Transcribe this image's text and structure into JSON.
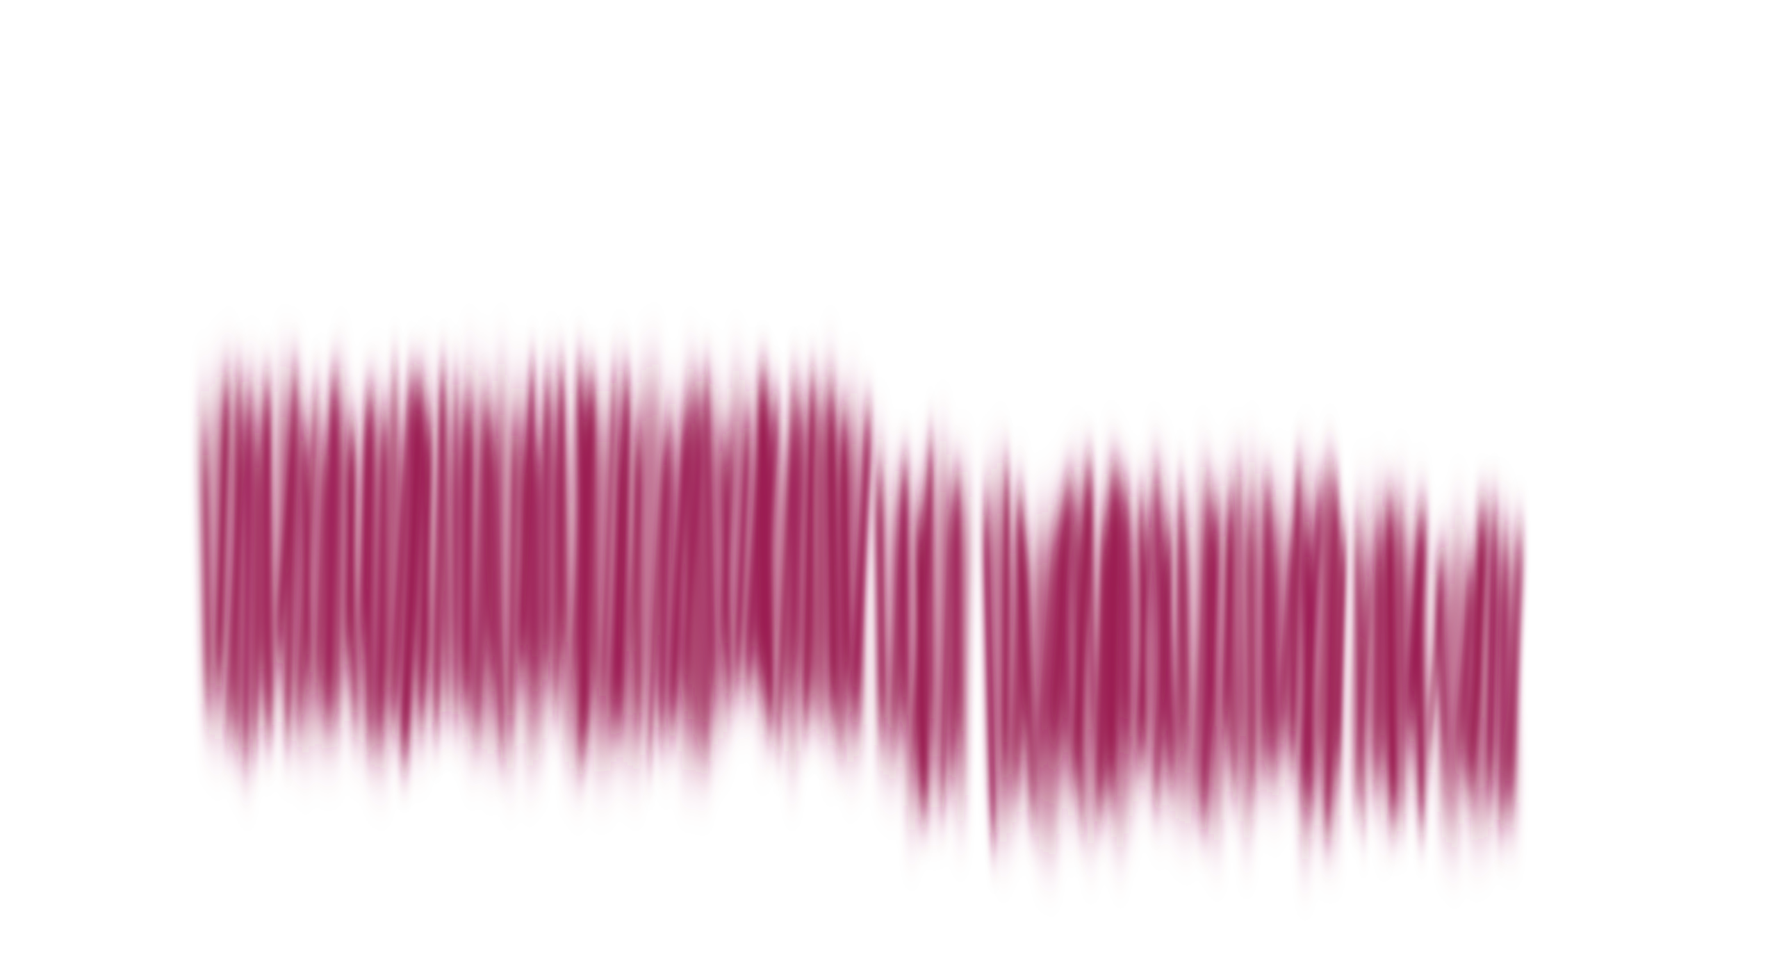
{
  "artwork": {
    "description_color": "#9b1b52",
    "background_color": "#ffffff",
    "style": "motion-blurred vertical streak texture"
  }
}
